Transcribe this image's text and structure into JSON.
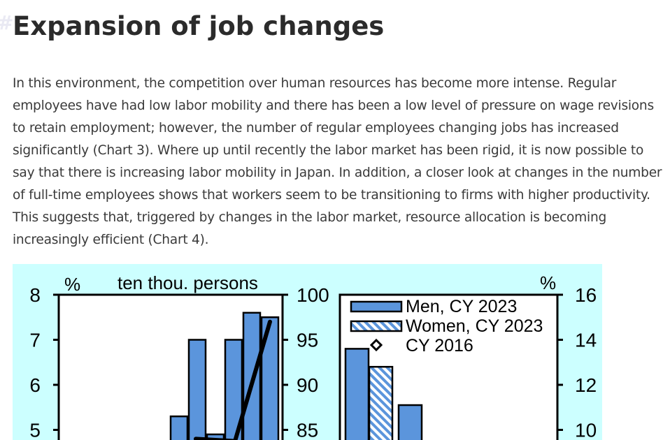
{
  "article": {
    "title": "Expansion of job changes",
    "paragraph": "In this environment, the competition over human resources has become more intense. Regular employees have had low labor mobility and there has been a low level of pressure on wage revisions to retain employment; however, the number of regular employees changing jobs has increased significantly (Chart 3). Where up until recently the labor market has been rigid, it is now possible to say that there is increasing labor mobility in Japan. In addition, a closer look at changes in the number of full-time employees shows that workers seem to be transitioning to firms with higher productivity. This suggests that, triggered by changes in the labor market, resource allocation is becoming increasingly efficient (Chart 4)."
  },
  "colors": {
    "chart_background": "#ccffff",
    "bar_fill": "#5b95dc",
    "bar_stroke": "#000000"
  },
  "chart_data": [
    {
      "type": "bar",
      "title": "",
      "left_axis_unit": "%",
      "right_axis_unit": "ten thou. persons",
      "left_ylim": [
        4.6,
        8
      ],
      "left_ticks": [
        "8",
        "7",
        "6",
        "5"
      ],
      "right_ylim": [
        83,
        100
      ],
      "right_ticks": [
        "100",
        "95",
        "90",
        "85"
      ],
      "series": [
        {
          "values": [
            5.3,
            7.0,
            4.9,
            7.0,
            7.6,
            7.5
          ]
        }
      ],
      "line_series": {
        "values": [
          4.8,
          4.75,
          7.4
        ]
      }
    },
    {
      "type": "bar",
      "title": "",
      "right_axis_unit": "%",
      "right_ylim": [
        9.5,
        16
      ],
      "right_ticks": [
        "16",
        "14",
        "12",
        "10"
      ],
      "legend": [
        "Men, CY 2023",
        "Women, CY 2023",
        "CY 2016"
      ],
      "legend_position": "top-left",
      "series": [
        {
          "name": "Men, CY 2023",
          "values": [
            13.6,
            11.1
          ]
        },
        {
          "name": "Women, CY 2023",
          "values": [
            12.8
          ]
        }
      ]
    }
  ]
}
